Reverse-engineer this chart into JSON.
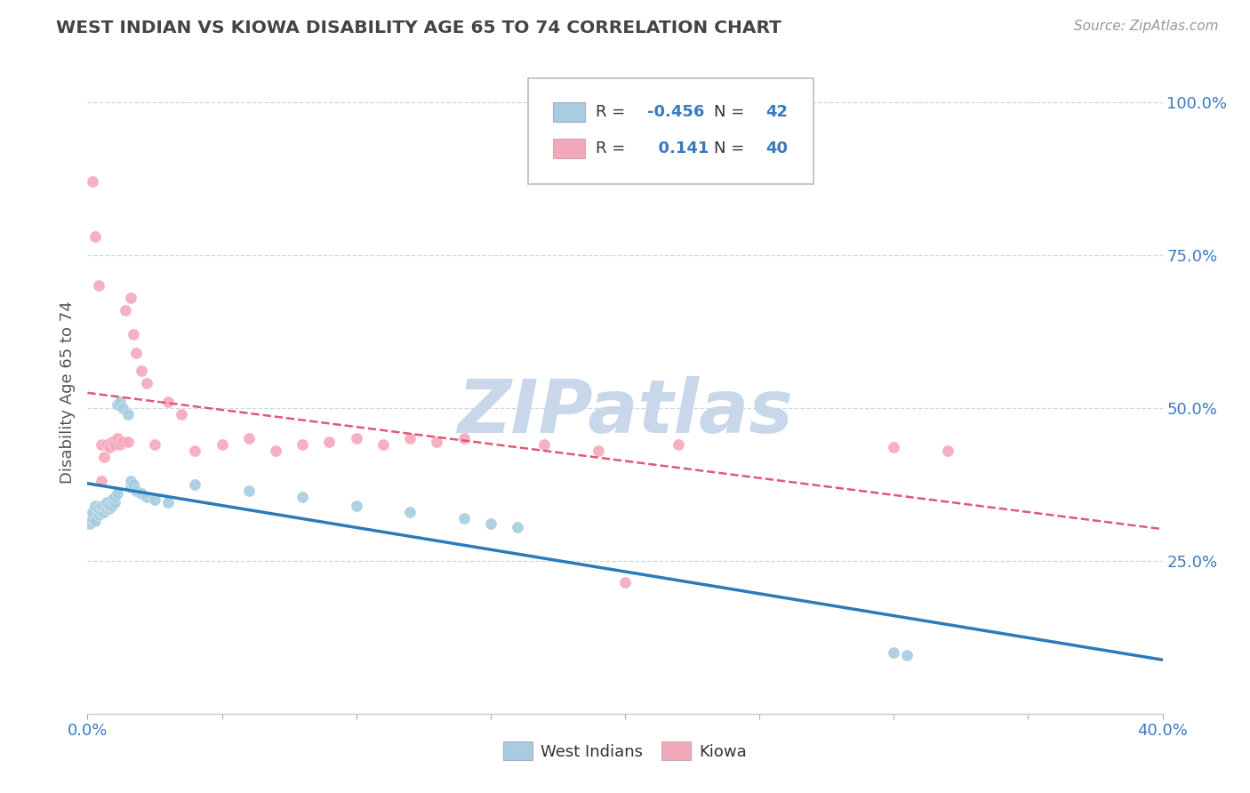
{
  "title": "WEST INDIAN VS KIOWA DISABILITY AGE 65 TO 74 CORRELATION CHART",
  "source": "Source: ZipAtlas.com",
  "ylabel": "Disability Age 65 to 74",
  "west_indian_R": "-0.456",
  "west_indian_N": "42",
  "kiowa_R": "0.141",
  "kiowa_N": "40",
  "west_indian_color": "#a8cce0",
  "west_indian_line_color": "#2b7bba",
  "kiowa_color": "#f4a8bc",
  "kiowa_line_color": "#e05878",
  "background_color": "#ffffff",
  "watermark_color": "#c8d8ea",
  "xlim": [
    0.0,
    0.4
  ],
  "ylim": [
    0.0,
    1.05
  ],
  "axis_label_color": "#3a7abf",
  "title_color": "#444444",
  "wi_x": [
    0.001,
    0.002,
    0.002,
    0.003,
    0.003,
    0.004,
    0.004,
    0.005,
    0.005,
    0.006,
    0.006,
    0.007,
    0.007,
    0.008,
    0.008,
    0.009,
    0.009,
    0.01,
    0.01,
    0.011,
    0.011,
    0.012,
    0.013,
    0.015,
    0.016,
    0.016,
    0.017,
    0.018,
    0.02,
    0.022,
    0.025,
    0.03,
    0.04,
    0.06,
    0.08,
    0.1,
    0.12,
    0.14,
    0.15,
    0.16,
    0.3,
    0.305
  ],
  "wi_y": [
    0.31,
    0.32,
    0.33,
    0.315,
    0.34,
    0.325,
    0.335,
    0.33,
    0.34,
    0.33,
    0.34,
    0.335,
    0.345,
    0.335,
    0.34,
    0.34,
    0.35,
    0.345,
    0.355,
    0.36,
    0.505,
    0.51,
    0.5,
    0.49,
    0.37,
    0.38,
    0.375,
    0.365,
    0.36,
    0.355,
    0.35,
    0.345,
    0.375,
    0.365,
    0.355,
    0.34,
    0.33,
    0.32,
    0.31,
    0.305,
    0.1,
    0.095
  ],
  "ki_x": [
    0.002,
    0.003,
    0.004,
    0.005,
    0.005,
    0.006,
    0.007,
    0.008,
    0.009,
    0.01,
    0.011,
    0.012,
    0.013,
    0.014,
    0.015,
    0.016,
    0.017,
    0.018,
    0.02,
    0.022,
    0.025,
    0.03,
    0.035,
    0.04,
    0.05,
    0.06,
    0.07,
    0.08,
    0.09,
    0.1,
    0.11,
    0.12,
    0.13,
    0.14,
    0.17,
    0.19,
    0.2,
    0.22,
    0.3,
    0.32
  ],
  "ki_y": [
    0.87,
    0.78,
    0.7,
    0.38,
    0.44,
    0.42,
    0.44,
    0.435,
    0.445,
    0.44,
    0.45,
    0.44,
    0.445,
    0.66,
    0.445,
    0.68,
    0.62,
    0.59,
    0.56,
    0.54,
    0.44,
    0.51,
    0.49,
    0.43,
    0.44,
    0.45,
    0.43,
    0.44,
    0.445,
    0.45,
    0.44,
    0.45,
    0.445,
    0.45,
    0.44,
    0.43,
    0.215,
    0.44,
    0.435,
    0.43
  ]
}
